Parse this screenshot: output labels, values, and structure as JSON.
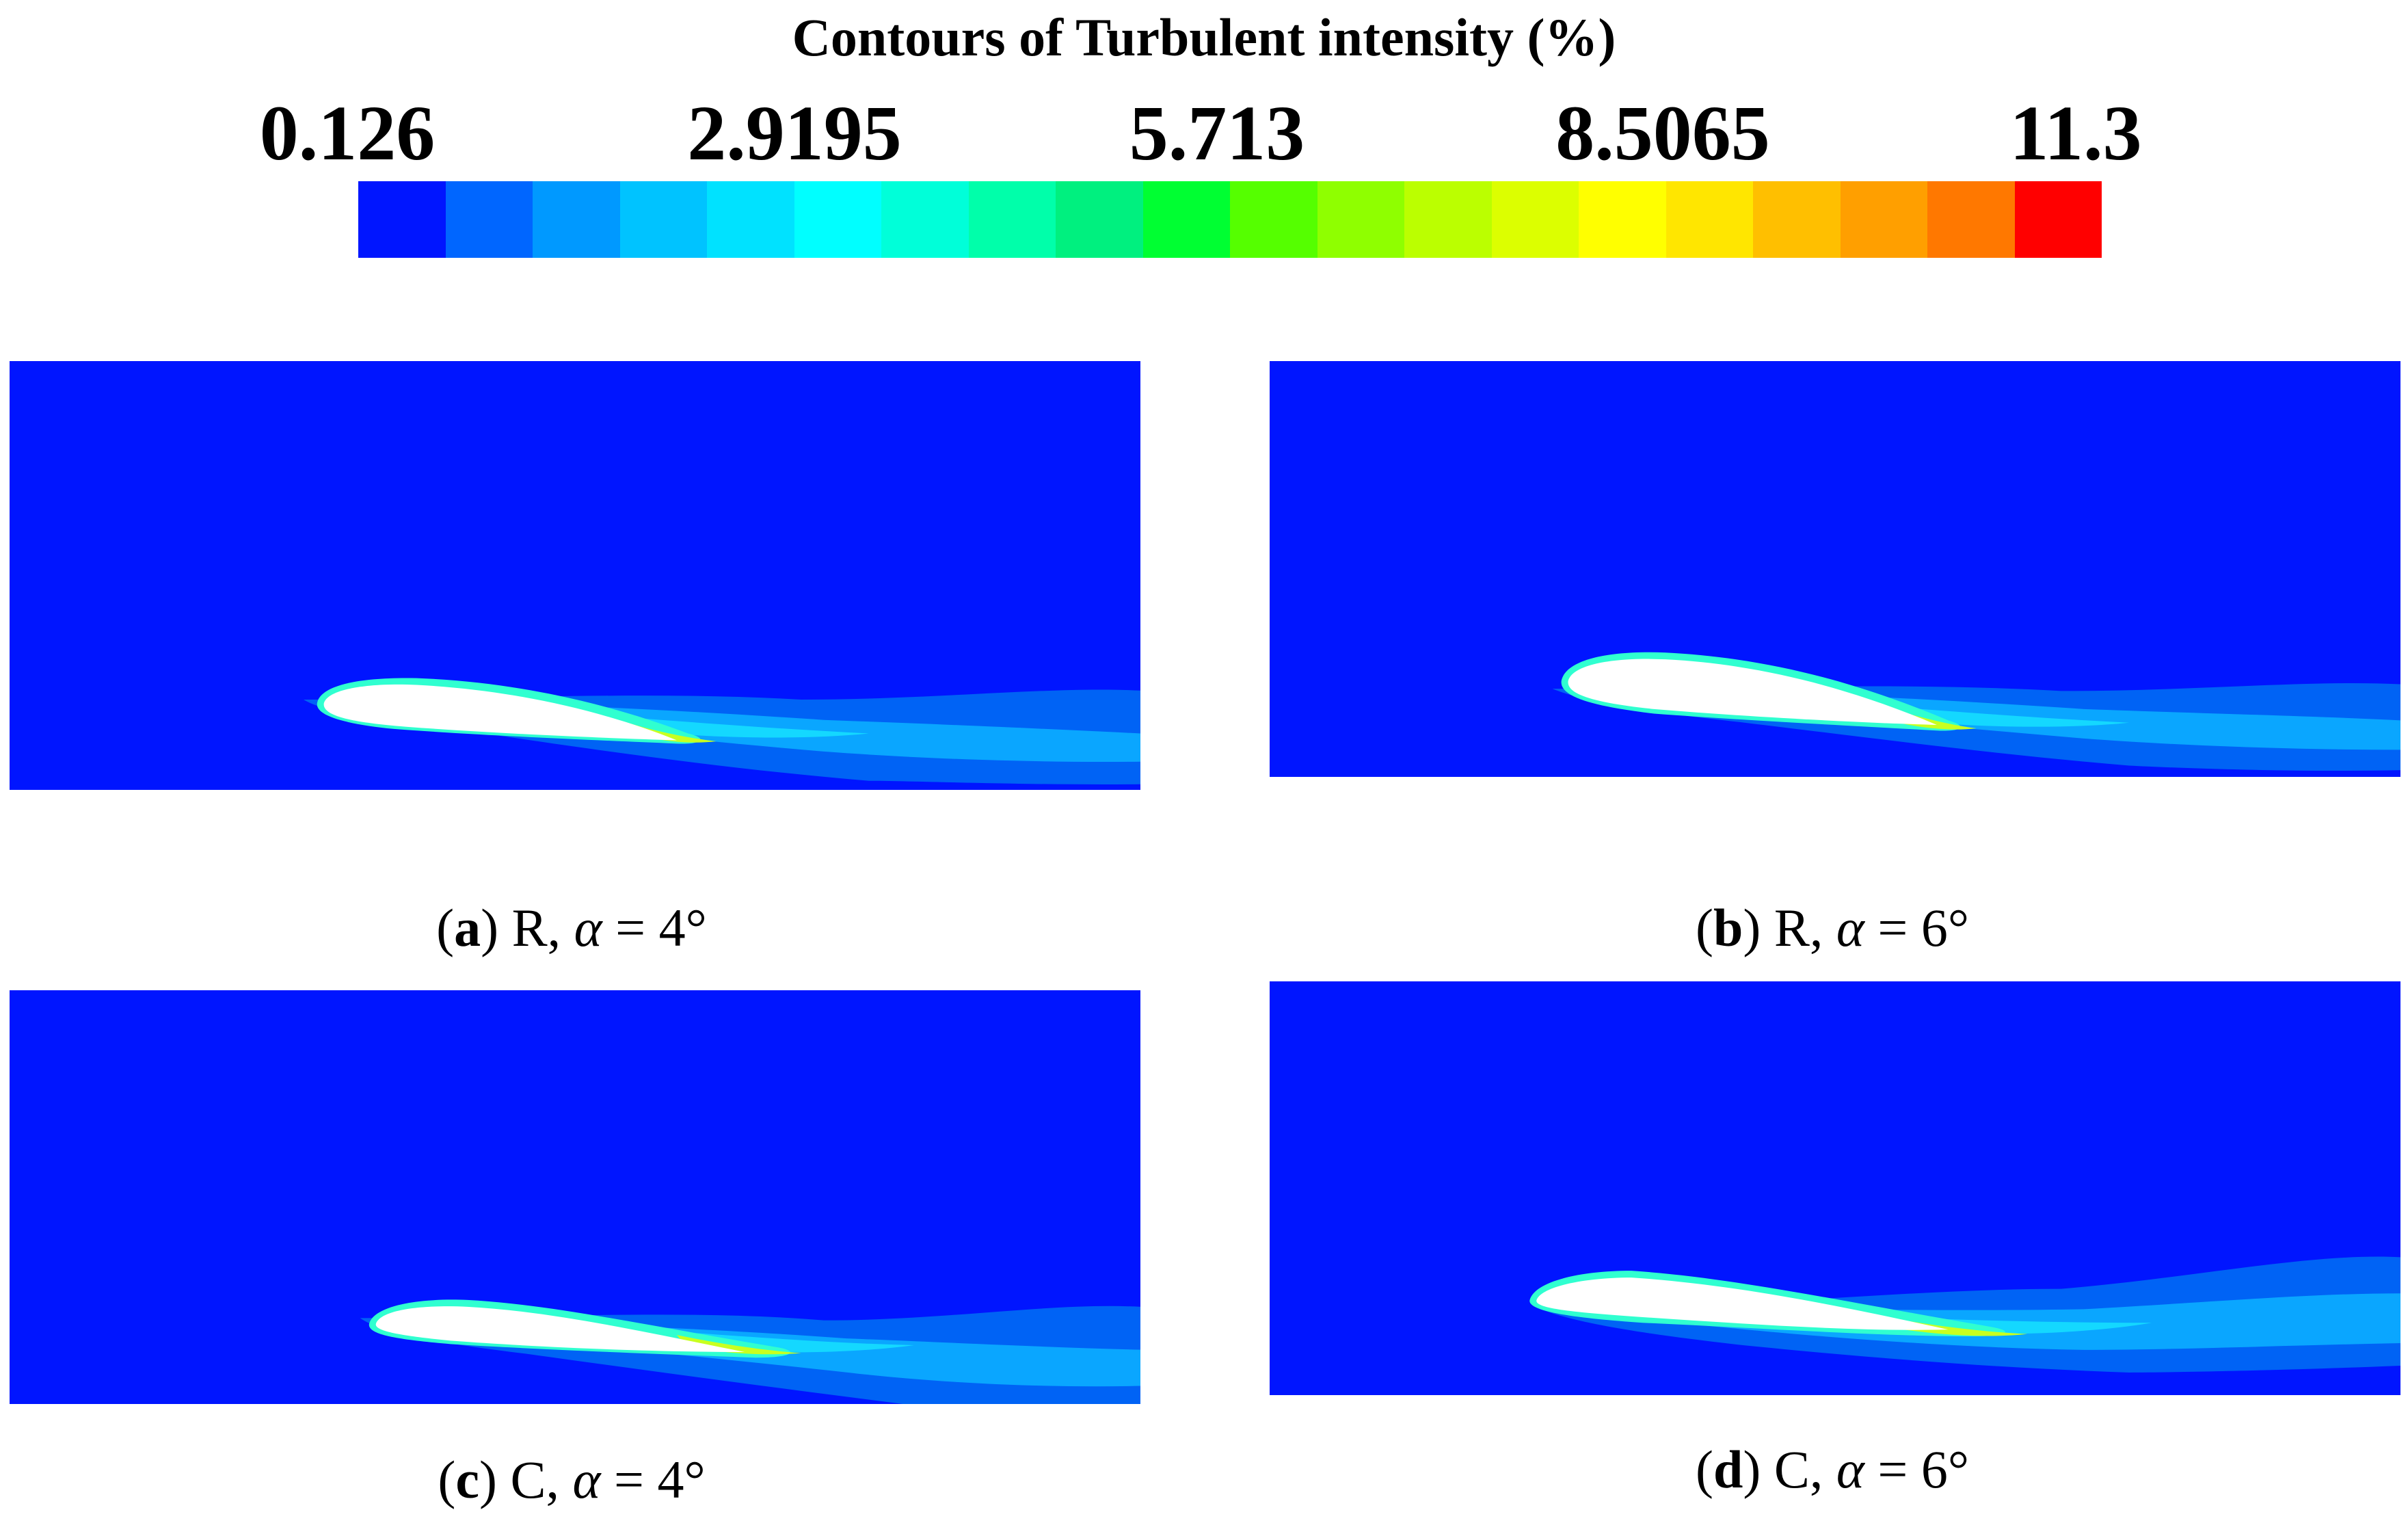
{
  "legend": {
    "title": "Contours of Turbulent intensity (%)",
    "ticks": [
      "0.126",
      "2.9195",
      "5.713",
      "8.5065",
      "11.3"
    ],
    "colors": [
      "#0015ff",
      "#0066ff",
      "#0099ff",
      "#00c3ff",
      "#00e2ff",
      "#00ffff",
      "#00ffd9",
      "#00ffaa",
      "#00f07f",
      "#00ff32",
      "#55ff00",
      "#8fff00",
      "#bbff00",
      "#dcff00",
      "#ffff00",
      "#ffe600",
      "#ffbf00",
      "#ff9f00",
      "#ff7800",
      "#ff0000"
    ]
  },
  "panels": [
    {
      "letter": "a",
      "case": "R",
      "alpha_symbol": "α",
      "angle": "4°"
    },
    {
      "letter": "b",
      "case": "R",
      "alpha_symbol": "α",
      "angle": "6°"
    },
    {
      "letter": "c",
      "case": "C",
      "alpha_symbol": "α",
      "angle": "4°"
    },
    {
      "letter": "d",
      "case": "C",
      "alpha_symbol": "α",
      "angle": "6°"
    }
  ],
  "field_colors": {
    "background": "#0015ff",
    "wake_outer": "#0063f5",
    "wake_mid": "#0aa6ff",
    "wake_inner": "#14d8ff",
    "shear": "#30ffd0",
    "hot": "#c8ff20",
    "airfoil": "#ffffff"
  }
}
